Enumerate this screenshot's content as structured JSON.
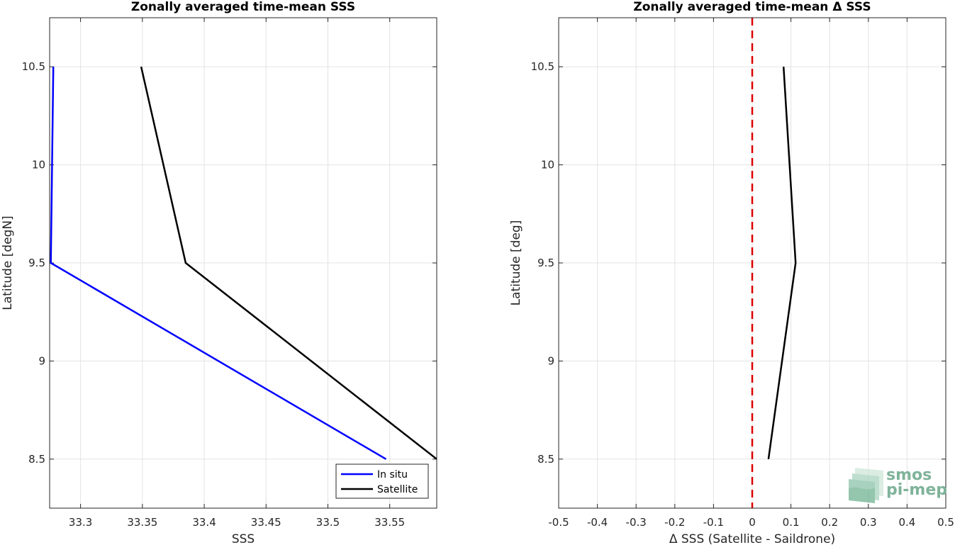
{
  "chart_data": [
    {
      "type": "line",
      "title": "Zonally averaged time-mean SSS",
      "xlabel": "SSS",
      "ylabel": "Latitude [degN]",
      "xlim": [
        33.275,
        33.588
      ],
      "ylim": [
        8.25,
        10.75
      ],
      "xticks": [
        33.3,
        33.35,
        33.4,
        33.45,
        33.5,
        33.55
      ],
      "xtick_labels": [
        "33.3",
        "33.35",
        "33.4",
        "33.45",
        "33.5",
        "33.55"
      ],
      "yticks": [
        8.5,
        9,
        9.5,
        10,
        10.5
      ],
      "ytick_labels": [
        "8.5",
        "9",
        "9.5",
        "10",
        "10.5"
      ],
      "grid": true,
      "legend_position": "bottom-right",
      "series": [
        {
          "name": "In situ",
          "color": "#0000ff",
          "x": [
            33.547,
            33.276,
            33.278
          ],
          "y": [
            8.5,
            9.5,
            10.5
          ]
        },
        {
          "name": "Satellite",
          "color": "#000000",
          "x": [
            33.588,
            33.385,
            33.349
          ],
          "y": [
            8.5,
            9.5,
            10.5
          ]
        }
      ]
    },
    {
      "type": "line",
      "title": "Zonally averaged time-mean Δ SSS",
      "xlabel": "Δ SSS (Satellite - Saildrone)",
      "ylabel": "Latitude [deg]",
      "xlim": [
        -0.5,
        0.5
      ],
      "ylim": [
        8.25,
        10.75
      ],
      "xticks": [
        -0.5,
        -0.4,
        -0.3,
        -0.2,
        -0.1,
        0,
        0.1,
        0.2,
        0.3,
        0.4,
        0.5
      ],
      "xtick_labels": [
        "-0.5",
        "-0.4",
        "-0.3",
        "-0.2",
        "-0.1",
        "0",
        "0.1",
        "0.2",
        "0.3",
        "0.4",
        "0.5"
      ],
      "yticks": [
        8.5,
        9,
        9.5,
        10,
        10.5
      ],
      "ytick_labels": [
        "8.5",
        "9",
        "9.5",
        "10",
        "10.5"
      ],
      "grid": true,
      "series": [
        {
          "color": "#000000",
          "x": [
            0.042,
            0.112,
            0.081
          ],
          "y": [
            8.5,
            9.5,
            10.5
          ]
        }
      ],
      "reference_line": {
        "x": 0,
        "color": "#dd0000",
        "style": "dashed"
      }
    }
  ],
  "logo": {
    "line1": "smos",
    "line2": "pi-mep"
  }
}
